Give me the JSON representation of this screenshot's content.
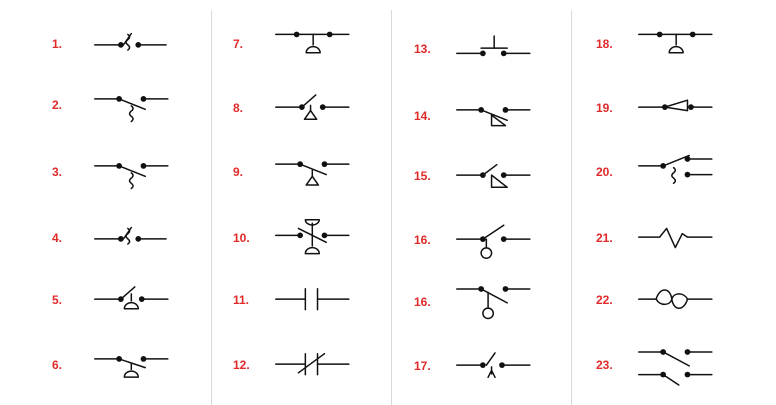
{
  "theme": {
    "number_color": "#e02a2a",
    "line_color": "#111111",
    "divider_color": "#d9d9d9"
  },
  "columns": [
    {
      "items": [
        {
          "label": "1.",
          "icon": "switch-thermal-open-icon"
        },
        {
          "label": "2.",
          "icon": "switch-thermal-closed-icon"
        },
        {
          "label": "3.",
          "icon": "switch-thermal-closed-icon"
        },
        {
          "label": "4.",
          "icon": "switch-thermal-open-icon"
        },
        {
          "label": "5.",
          "icon": "switch-pressure-closed-icon"
        },
        {
          "label": "6.",
          "icon": "switch-pressure-open-icon"
        }
      ]
    },
    {
      "items": [
        {
          "label": "7.",
          "icon": "switch-pressure-no-icon"
        },
        {
          "label": "8.",
          "icon": "switch-liquid-level-closed-icon"
        },
        {
          "label": "9.",
          "icon": "switch-liquid-level-open-icon"
        },
        {
          "label": "10.",
          "icon": "switch-vacuum-pressure-icon"
        },
        {
          "label": "11.",
          "icon": "contact-no-icon"
        },
        {
          "label": "12.",
          "icon": "contact-nc-icon"
        }
      ]
    },
    {
      "items": [
        {
          "label": "13.",
          "icon": "pushbutton-no-icon"
        },
        {
          "label": "14.",
          "icon": "switch-flow-open-icon"
        },
        {
          "label": "15.",
          "icon": "switch-flow-closed-icon"
        },
        {
          "label": "16.",
          "icon": "switch-float-closed-icon"
        },
        {
          "label": "16.",
          "icon": "switch-float-open-icon"
        },
        {
          "label": "17.",
          "icon": "switch-foot-icon"
        }
      ]
    },
    {
      "items": [
        {
          "label": "18.",
          "icon": "switch-pressure-no-icon"
        },
        {
          "label": "19.",
          "icon": "switch-toggle-icon"
        },
        {
          "label": "20.",
          "icon": "switch-thermal-transfer-icon"
        },
        {
          "label": "21.",
          "icon": "resistor-icon"
        },
        {
          "label": "22.",
          "icon": "fuse-icon"
        },
        {
          "label": "23.",
          "icon": "switch-double-pole-icon"
        }
      ]
    }
  ]
}
